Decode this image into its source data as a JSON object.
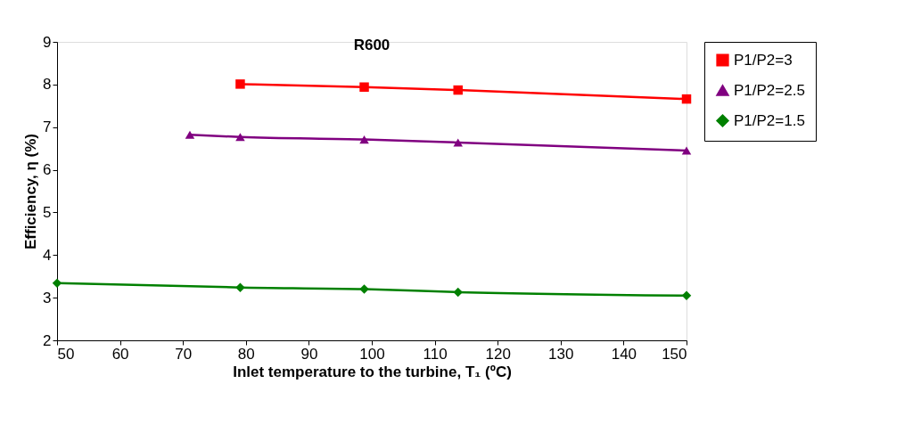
{
  "chart_data": {
    "type": "line",
    "title": "R600",
    "xlabel": "Inlet temperature to the turbine, T₁ (ºC)",
    "ylabel": "Efficiency, η (%)",
    "xlim": [
      50,
      150
    ],
    "xticks": [
      50,
      60,
      70,
      80,
      90,
      100,
      110,
      120,
      130,
      140,
      150
    ],
    "ylim": [
      2,
      9
    ],
    "yticks": [
      2,
      3,
      4,
      5,
      6,
      7,
      8,
      9
    ],
    "grid": false,
    "legend": "right",
    "line_style": "solid",
    "series": [
      {
        "name": "P1/P2=3",
        "color": "#ff0000",
        "marker": "square",
        "x": [
          79.1,
          98.8,
          113.7,
          150
        ],
        "values": [
          8.01,
          7.94,
          7.87,
          7.66
        ]
      },
      {
        "name": "P1/P2=2.5",
        "color": "#800080",
        "marker": "triangle",
        "x": [
          71.1,
          79.1,
          98.8,
          113.7,
          150
        ],
        "values": [
          6.82,
          6.77,
          6.71,
          6.64,
          6.45
        ]
      },
      {
        "name": "P1/P2=1.5",
        "color": "#008000",
        "marker": "diamond",
        "x": [
          50,
          79.1,
          98.8,
          113.7,
          150
        ],
        "values": [
          3.34,
          3.24,
          3.2,
          3.13,
          3.05
        ]
      }
    ]
  }
}
